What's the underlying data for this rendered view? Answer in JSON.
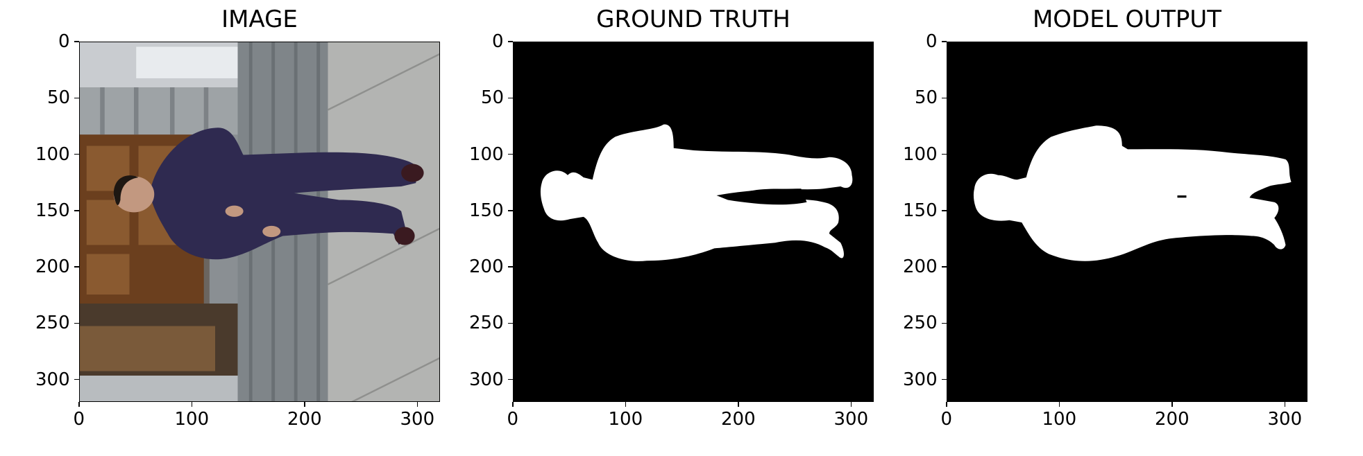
{
  "figure": {
    "panels": [
      {
        "id": "image",
        "title": "IMAGE"
      },
      {
        "id": "ground-truth",
        "title": "GROUND TRUTH"
      },
      {
        "id": "model-output",
        "title": "MODEL OUTPUT"
      }
    ]
  },
  "chart_data": [
    {
      "type": "image",
      "title": "IMAGE",
      "xlim": [
        0,
        320
      ],
      "ylim": [
        320,
        0
      ],
      "xticks": [
        0,
        100,
        200,
        300
      ],
      "yticks": [
        0,
        50,
        100,
        150,
        200,
        250,
        300
      ],
      "xtick_labels": [
        "0",
        "100",
        "200",
        "300"
      ],
      "ytick_labels": [
        "0",
        "50",
        "100",
        "150",
        "200",
        "250",
        "300"
      ],
      "content": "rotated photo of a man lying sideways in a doorway on a sidewalk"
    },
    {
      "type": "image",
      "title": "GROUND TRUTH",
      "xlim": [
        0,
        320
      ],
      "ylim": [
        320,
        0
      ],
      "xticks": [
        0,
        100,
        200,
        300
      ],
      "yticks": [
        0,
        50,
        100,
        150,
        200,
        250,
        300
      ],
      "xtick_labels": [
        "0",
        "100",
        "200",
        "300"
      ],
      "ytick_labels": [
        "0",
        "50",
        "100",
        "150",
        "200",
        "250",
        "300"
      ],
      "colors": {
        "background": "#000000",
        "mask": "#ffffff"
      }
    },
    {
      "type": "image",
      "title": "MODEL OUTPUT",
      "xlim": [
        0,
        320
      ],
      "ylim": [
        320,
        0
      ],
      "xticks": [
        0,
        100,
        200,
        300
      ],
      "yticks": [
        0,
        50,
        100,
        150,
        200,
        250,
        300
      ],
      "xtick_labels": [
        "0",
        "100",
        "200",
        "300"
      ],
      "ytick_labels": [
        "0",
        "50",
        "100",
        "150",
        "200",
        "250",
        "300"
      ],
      "colors": {
        "background": "#000000",
        "mask": "#ffffff"
      }
    }
  ]
}
